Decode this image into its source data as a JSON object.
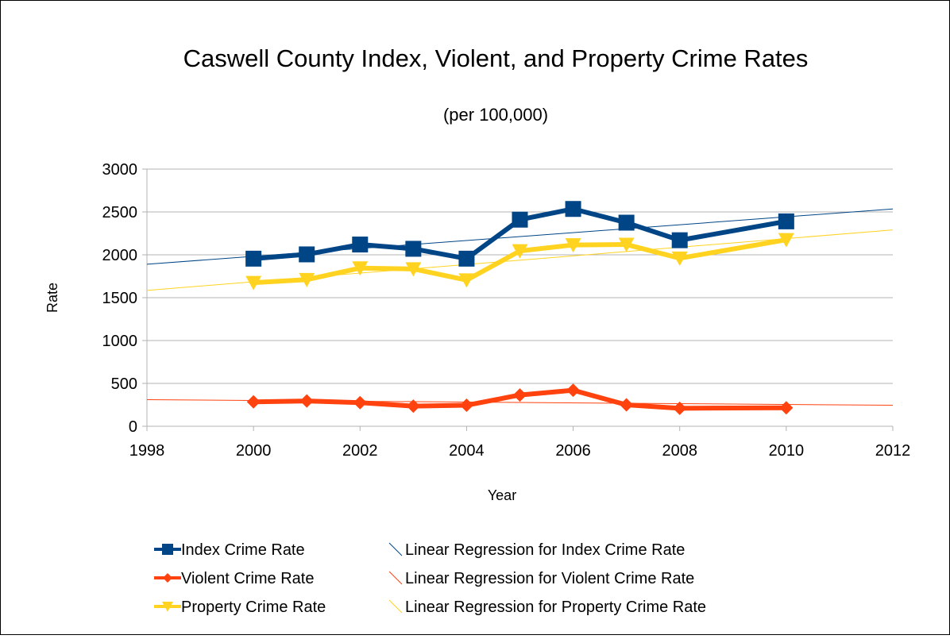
{
  "chart_data": {
    "type": "line",
    "title": "Caswell County Index, Violent, and Property Crime Rates",
    "subtitle": "(per 100,000)",
    "xlabel": "Year",
    "ylabel": "Rate",
    "xlim": [
      1998,
      2012
    ],
    "ylim": [
      0,
      3000
    ],
    "xticks": [
      1998,
      2000,
      2002,
      2004,
      2006,
      2008,
      2010,
      2012
    ],
    "yticks": [
      0,
      500,
      1000,
      1500,
      2000,
      2500,
      3000
    ],
    "grid": "horizontal",
    "legend_position": "bottom",
    "series": [
      {
        "name": "Index Crime Rate",
        "color": "#004586",
        "marker": "square",
        "x": [
          2000,
          2001,
          2002,
          2003,
          2004,
          2005,
          2006,
          2007,
          2008,
          2010
        ],
        "y": [
          1955,
          2005,
          2120,
          2070,
          1955,
          2410,
          2535,
          2375,
          2170,
          2390
        ]
      },
      {
        "name": "Violent Crime Rate",
        "color": "#ff420e",
        "marker": "diamond",
        "x": [
          2000,
          2001,
          2002,
          2003,
          2004,
          2005,
          2006,
          2007,
          2008,
          2010
        ],
        "y": [
          285,
          295,
          275,
          235,
          245,
          365,
          420,
          250,
          210,
          215
        ]
      },
      {
        "name": "Property Crime Rate",
        "color": "#ffd320",
        "marker": "triangle-down",
        "x": [
          2000,
          2001,
          2002,
          2003,
          2004,
          2005,
          2006,
          2007,
          2008,
          2010
        ],
        "y": [
          1675,
          1710,
          1845,
          1835,
          1705,
          2045,
          2115,
          2120,
          1960,
          2175
        ]
      }
    ],
    "trendlines": [
      {
        "name": "Linear Regression for Index Crime Rate",
        "color": "#004586",
        "x": [
          1998,
          2012
        ],
        "y": [
          1890,
          2535
        ]
      },
      {
        "name": "Linear Regression for Violent Crime Rate",
        "color": "#ff420e",
        "x": [
          1998,
          2012
        ],
        "y": [
          310,
          245
        ]
      },
      {
        "name": "Linear Regression for Property Crime Rate",
        "color": "#ffd320",
        "x": [
          1998,
          2012
        ],
        "y": [
          1585,
          2290
        ]
      }
    ]
  }
}
